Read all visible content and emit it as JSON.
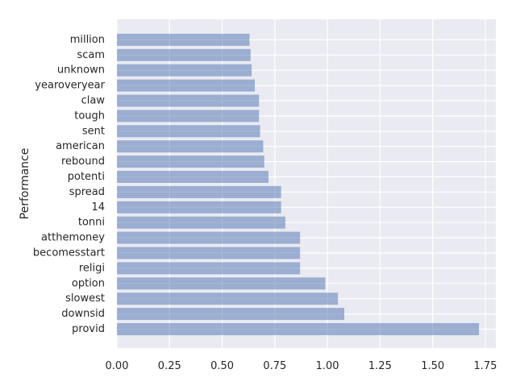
{
  "chart_data": {
    "type": "bar",
    "orientation": "horizontal",
    "title": "",
    "xlabel": "",
    "ylabel": "Performance",
    "categories": [
      "provid",
      "downsid",
      "slowest",
      "option",
      "religi",
      "becomesstart",
      "atthemoney",
      "tonni",
      "14",
      "spread",
      "potenti",
      "rebound",
      "american",
      "sent",
      "tough",
      "claw",
      "yearoveryear",
      "unknown",
      "scam",
      "million"
    ],
    "values": [
      1.72,
      1.08,
      1.05,
      0.99,
      0.87,
      0.87,
      0.87,
      0.8,
      0.78,
      0.78,
      0.72,
      0.7,
      0.695,
      0.68,
      0.675,
      0.675,
      0.655,
      0.64,
      0.635,
      0.63
    ],
    "xlim": [
      0,
      1.8
    ],
    "xticks": [
      0.0,
      0.25,
      0.5,
      0.75,
      1.0,
      1.25,
      1.5,
      1.75
    ],
    "xtick_labels": [
      "0.00",
      "0.25",
      "0.50",
      "0.75",
      "1.00",
      "1.25",
      "1.50",
      "1.75"
    ],
    "grid": true,
    "colors": {
      "bar": "#4c72b0",
      "bar_opacity": 0.5,
      "plot_background": "#eaeaf2",
      "grid": "#ffffff",
      "text": "#262626"
    }
  }
}
